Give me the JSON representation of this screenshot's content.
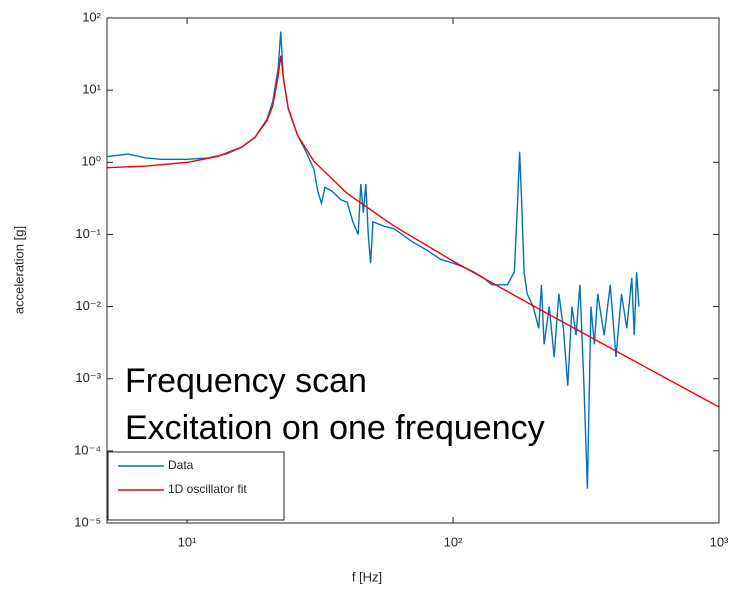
{
  "chart_data": {
    "type": "line",
    "xlabel": "f [Hz]",
    "ylabel": "acceleration [g]",
    "xscale": "log",
    "yscale": "log",
    "xlim": [
      5,
      1000
    ],
    "ylim": [
      1e-05,
      100
    ],
    "xticks": [
      {
        "value": 10,
        "label": "10¹"
      },
      {
        "value": 100,
        "label": "10²"
      },
      {
        "value": 1000,
        "label": "10³"
      }
    ],
    "yticks": [
      {
        "value": 1e-05,
        "label": "10⁻⁵"
      },
      {
        "value": 0.0001,
        "label": "10⁻⁴"
      },
      {
        "value": 0.001,
        "label": "10⁻³"
      },
      {
        "value": 0.01,
        "label": "10⁻²"
      },
      {
        "value": 0.1,
        "label": "10⁻¹"
      },
      {
        "value": 1,
        "label": "10⁰"
      },
      {
        "value": 10,
        "label": "10¹"
      },
      {
        "value": 100,
        "label": "10²"
      }
    ],
    "legend": "lower left",
    "annotations": [
      "Frequency scan",
      "Excitation on one frequency"
    ],
    "series": [
      {
        "name": "Data",
        "color": "#0072bd",
        "x": [
          5,
          6,
          7,
          8,
          10,
          12,
          14,
          16,
          18,
          20,
          21,
          22,
          22.5,
          23,
          24,
          26,
          28,
          30,
          31,
          32,
          33,
          35,
          38,
          40,
          42,
          44,
          45,
          46,
          47,
          48,
          49,
          50,
          55,
          60,
          70,
          80,
          90,
          100,
          110,
          120,
          130,
          140,
          150,
          160,
          170,
          175,
          178,
          181,
          185,
          190,
          200,
          210,
          215,
          220,
          230,
          240,
          250,
          260,
          270,
          280,
          290,
          300,
          310,
          320,
          330,
          340,
          350,
          370,
          390,
          410,
          430,
          450,
          470,
          480,
          490,
          500
        ],
        "values": [
          1.2,
          1.3,
          1.15,
          1.1,
          1.1,
          1.15,
          1.3,
          1.6,
          2.2,
          4,
          7,
          20,
          65,
          15,
          5.5,
          2.4,
          1.4,
          0.8,
          0.4,
          0.27,
          0.45,
          0.4,
          0.3,
          0.28,
          0.15,
          0.1,
          0.5,
          0.2,
          0.5,
          0.1,
          0.04,
          0.15,
          0.13,
          0.12,
          0.08,
          0.06,
          0.045,
          0.04,
          0.035,
          0.03,
          0.025,
          0.02,
          0.02,
          0.02,
          0.03,
          0.3,
          1.4,
          0.3,
          0.03,
          0.015,
          0.01,
          0.005,
          0.02,
          0.003,
          0.01,
          0.002,
          0.015,
          0.005,
          0.0008,
          0.01,
          0.004,
          0.02,
          0.001,
          3e-05,
          0.01,
          0.003,
          0.015,
          0.004,
          0.02,
          0.002,
          0.015,
          0.005,
          0.025,
          0.004,
          0.03,
          0.01
        ]
      },
      {
        "name": "1D oscillator fit",
        "color": "#ff0000",
        "x": [
          5,
          7,
          10,
          13,
          16,
          18,
          20,
          21,
          22,
          22.5,
          23,
          24,
          26,
          30,
          40,
          60,
          100,
          200,
          400,
          700,
          1000
        ],
        "values": [
          0.841,
          0.886,
          0.997,
          1.2,
          1.62,
          2.22,
          3.79,
          6.09,
          15.6,
          30,
          15.2,
          5.69,
          2.39,
          1.03,
          0.37,
          0.131,
          0.0427,
          0.01026,
          0.00254,
          0.000827,
          0.000405
        ]
      }
    ]
  }
}
